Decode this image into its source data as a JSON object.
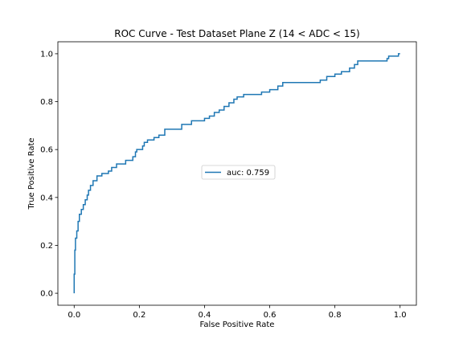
{
  "chart_data": {
    "type": "line",
    "title": "ROC Curve - Test Dataset Plane Z (14 < ADC < 15)",
    "xlabel": "False Positive Rate",
    "ylabel": "True Positive Rate",
    "xlim": [
      -0.05,
      1.05
    ],
    "ylim": [
      -0.05,
      1.05
    ],
    "xticks": [
      0.0,
      0.2,
      0.4,
      0.6,
      0.8,
      1.0
    ],
    "yticks": [
      0.0,
      0.2,
      0.4,
      0.6,
      0.8,
      1.0
    ],
    "xtick_labels": [
      "0.0",
      "0.2",
      "0.4",
      "0.6",
      "0.8",
      "1.0"
    ],
    "ytick_labels": [
      "0.0",
      "0.2",
      "0.4",
      "0.6",
      "0.8",
      "1.0"
    ],
    "grid": false,
    "legend_position": "center",
    "series": [
      {
        "name": "auc: 0.759",
        "color": "#1f77b4",
        "points": [
          [
            0.0,
            0.0
          ],
          [
            0.0,
            0.08
          ],
          [
            0.002,
            0.08
          ],
          [
            0.002,
            0.18
          ],
          [
            0.004,
            0.18
          ],
          [
            0.004,
            0.23
          ],
          [
            0.008,
            0.23
          ],
          [
            0.008,
            0.26
          ],
          [
            0.012,
            0.26
          ],
          [
            0.012,
            0.3
          ],
          [
            0.016,
            0.3
          ],
          [
            0.016,
            0.33
          ],
          [
            0.022,
            0.33
          ],
          [
            0.022,
            0.35
          ],
          [
            0.028,
            0.35
          ],
          [
            0.028,
            0.37
          ],
          [
            0.034,
            0.37
          ],
          [
            0.034,
            0.39
          ],
          [
            0.04,
            0.39
          ],
          [
            0.04,
            0.41
          ],
          [
            0.044,
            0.41
          ],
          [
            0.044,
            0.43
          ],
          [
            0.05,
            0.43
          ],
          [
            0.05,
            0.45
          ],
          [
            0.058,
            0.45
          ],
          [
            0.058,
            0.47
          ],
          [
            0.07,
            0.47
          ],
          [
            0.07,
            0.49
          ],
          [
            0.085,
            0.49
          ],
          [
            0.085,
            0.5
          ],
          [
            0.105,
            0.5
          ],
          [
            0.105,
            0.51
          ],
          [
            0.115,
            0.51
          ],
          [
            0.115,
            0.525
          ],
          [
            0.13,
            0.525
          ],
          [
            0.13,
            0.54
          ],
          [
            0.158,
            0.54
          ],
          [
            0.158,
            0.555
          ],
          [
            0.18,
            0.555
          ],
          [
            0.18,
            0.57
          ],
          [
            0.188,
            0.57
          ],
          [
            0.188,
            0.59
          ],
          [
            0.192,
            0.59
          ],
          [
            0.192,
            0.6
          ],
          [
            0.21,
            0.6
          ],
          [
            0.21,
            0.615
          ],
          [
            0.215,
            0.615
          ],
          [
            0.215,
            0.63
          ],
          [
            0.225,
            0.63
          ],
          [
            0.225,
            0.64
          ],
          [
            0.245,
            0.64
          ],
          [
            0.245,
            0.65
          ],
          [
            0.26,
            0.65
          ],
          [
            0.26,
            0.66
          ],
          [
            0.278,
            0.66
          ],
          [
            0.278,
            0.685
          ],
          [
            0.33,
            0.685
          ],
          [
            0.33,
            0.705
          ],
          [
            0.36,
            0.705
          ],
          [
            0.36,
            0.72
          ],
          [
            0.4,
            0.72
          ],
          [
            0.4,
            0.73
          ],
          [
            0.415,
            0.73
          ],
          [
            0.415,
            0.74
          ],
          [
            0.43,
            0.74
          ],
          [
            0.43,
            0.755
          ],
          [
            0.445,
            0.755
          ],
          [
            0.445,
            0.765
          ],
          [
            0.46,
            0.765
          ],
          [
            0.46,
            0.78
          ],
          [
            0.475,
            0.78
          ],
          [
            0.475,
            0.795
          ],
          [
            0.49,
            0.795
          ],
          [
            0.49,
            0.81
          ],
          [
            0.5,
            0.81
          ],
          [
            0.5,
            0.82
          ],
          [
            0.52,
            0.82
          ],
          [
            0.52,
            0.83
          ],
          [
            0.575,
            0.83
          ],
          [
            0.575,
            0.84
          ],
          [
            0.6,
            0.84
          ],
          [
            0.6,
            0.85
          ],
          [
            0.625,
            0.85
          ],
          [
            0.625,
            0.865
          ],
          [
            0.64,
            0.865
          ],
          [
            0.64,
            0.88
          ],
          [
            0.755,
            0.88
          ],
          [
            0.755,
            0.89
          ],
          [
            0.775,
            0.89
          ],
          [
            0.775,
            0.905
          ],
          [
            0.8,
            0.905
          ],
          [
            0.8,
            0.915
          ],
          [
            0.82,
            0.915
          ],
          [
            0.82,
            0.925
          ],
          [
            0.845,
            0.925
          ],
          [
            0.845,
            0.94
          ],
          [
            0.86,
            0.94
          ],
          [
            0.86,
            0.955
          ],
          [
            0.87,
            0.955
          ],
          [
            0.87,
            0.97
          ],
          [
            0.96,
            0.97
          ],
          [
            0.96,
            0.98
          ],
          [
            0.965,
            0.98
          ],
          [
            0.965,
            0.99
          ],
          [
            0.995,
            0.99
          ],
          [
            0.995,
            1.0
          ],
          [
            1.0,
            1.0
          ]
        ]
      }
    ]
  }
}
